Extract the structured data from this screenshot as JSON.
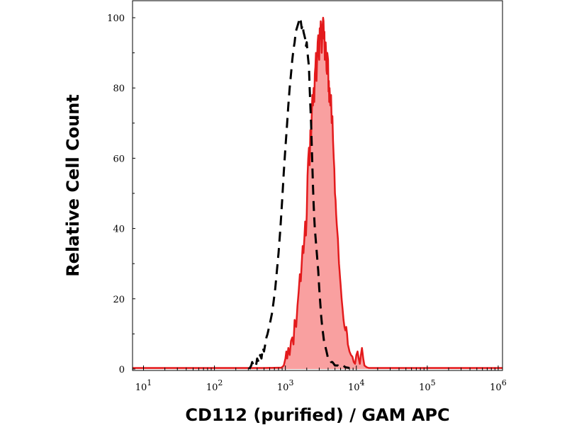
{
  "chart_data": {
    "type": "area",
    "xlabel": "CD112 (purified) / GAM APC",
    "ylabel": "Relative Cell Count",
    "x_scale": "log",
    "xlim": [
      7,
      1150000
    ],
    "ylim": [
      0,
      100
    ],
    "x_ticks": [
      {
        "base": "10",
        "exp": "1",
        "value": 10
      },
      {
        "base": "10",
        "exp": "2",
        "value": 100
      },
      {
        "base": "10",
        "exp": "3",
        "value": 1000
      },
      {
        "base": "10",
        "exp": "4",
        "value": 10000
      },
      {
        "base": "10",
        "exp": "5",
        "value": 100000
      },
      {
        "base": "10",
        "exp": "6",
        "value": 1000000
      }
    ],
    "y_ticks": [
      {
        "label": "0",
        "value": 0
      },
      {
        "label": "20",
        "value": 20
      },
      {
        "label": "40",
        "value": 40
      },
      {
        "label": "60",
        "value": 60
      },
      {
        "label": "80",
        "value": 80
      },
      {
        "label": "100",
        "value": 100
      }
    ],
    "grid": false,
    "series": [
      {
        "style": "filled",
        "color": "#e31a1c",
        "fill": "#f9a0a0",
        "points": [
          [
            7,
            0.3
          ],
          [
            100,
            0.3
          ],
          [
            500,
            0.3
          ],
          [
            880,
            0.4
          ],
          [
            950,
            1
          ],
          [
            1000,
            3
          ],
          [
            1030,
            5
          ],
          [
            1060,
            3
          ],
          [
            1100,
            6
          ],
          [
            1150,
            4
          ],
          [
            1200,
            8
          ],
          [
            1250,
            9
          ],
          [
            1300,
            7
          ],
          [
            1350,
            14
          ],
          [
            1420,
            12
          ],
          [
            1480,
            18
          ],
          [
            1540,
            22
          ],
          [
            1600,
            27
          ],
          [
            1650,
            25
          ],
          [
            1700,
            30
          ],
          [
            1750,
            35
          ],
          [
            1800,
            33
          ],
          [
            1850,
            37
          ],
          [
            1900,
            42
          ],
          [
            1950,
            38
          ],
          [
            2000,
            44
          ],
          [
            2050,
            55
          ],
          [
            2100,
            60
          ],
          [
            2150,
            63
          ],
          [
            2200,
            58
          ],
          [
            2250,
            68
          ],
          [
            2300,
            65
          ],
          [
            2350,
            72
          ],
          [
            2400,
            78
          ],
          [
            2450,
            75
          ],
          [
            2500,
            80
          ],
          [
            2550,
            76
          ],
          [
            2600,
            84
          ],
          [
            2650,
            86
          ],
          [
            2700,
            90
          ],
          [
            2750,
            82
          ],
          [
            2800,
            88
          ],
          [
            2850,
            93
          ],
          [
            2900,
            95
          ],
          [
            2950,
            90
          ],
          [
            3000,
            88
          ],
          [
            3050,
            97
          ],
          [
            3100,
            94
          ],
          [
            3150,
            99
          ],
          [
            3200,
            96
          ],
          [
            3250,
            90
          ],
          [
            3300,
            94
          ],
          [
            3350,
            98
          ],
          [
            3400,
            100
          ],
          [
            3450,
            99
          ],
          [
            3500,
            94
          ],
          [
            3550,
            96
          ],
          [
            3600,
            88
          ],
          [
            3650,
            92
          ],
          [
            3700,
            93
          ],
          [
            3750,
            90
          ],
          [
            3800,
            85
          ],
          [
            3850,
            84
          ],
          [
            3900,
            90
          ],
          [
            3950,
            89
          ],
          [
            4000,
            88
          ],
          [
            4050,
            79
          ],
          [
            4100,
            82
          ],
          [
            4150,
            76
          ],
          [
            4200,
            80
          ],
          [
            4300,
            75
          ],
          [
            4400,
            78
          ],
          [
            4500,
            70
          ],
          [
            4600,
            72
          ],
          [
            4700,
            65
          ],
          [
            4800,
            60
          ],
          [
            4900,
            57
          ],
          [
            5000,
            50
          ],
          [
            5100,
            48
          ],
          [
            5200,
            44
          ],
          [
            5300,
            41
          ],
          [
            5400,
            39
          ],
          [
            5500,
            37
          ],
          [
            5600,
            33
          ],
          [
            5700,
            30
          ],
          [
            5800,
            28
          ],
          [
            5900,
            26
          ],
          [
            6000,
            24
          ],
          [
            6200,
            20
          ],
          [
            6400,
            17
          ],
          [
            6600,
            14
          ],
          [
            6800,
            12
          ],
          [
            7000,
            11
          ],
          [
            7200,
            12
          ],
          [
            7400,
            10
          ],
          [
            7600,
            7
          ],
          [
            7800,
            6
          ],
          [
            8000,
            5
          ],
          [
            8400,
            4
          ],
          [
            8800,
            3.5
          ],
          [
            9200,
            2
          ],
          [
            9600,
            1.5
          ],
          [
            10000,
            4
          ],
          [
            10400,
            5
          ],
          [
            10800,
            3
          ],
          [
            11200,
            1.5
          ],
          [
            11600,
            4
          ],
          [
            12000,
            6
          ],
          [
            12500,
            3
          ],
          [
            13000,
            1
          ],
          [
            14000,
            0.5
          ],
          [
            15000,
            0.3
          ],
          [
            1150000,
            0.3
          ]
        ]
      },
      {
        "style": "dashed",
        "color": "#000000",
        "points": [
          [
            310,
            0
          ],
          [
            330,
            1
          ],
          [
            340,
            2
          ],
          [
            355,
            1
          ],
          [
            370,
            0.5
          ],
          [
            390,
            1.5
          ],
          [
            400,
            3
          ],
          [
            420,
            2
          ],
          [
            440,
            4
          ],
          [
            460,
            3
          ],
          [
            480,
            6
          ],
          [
            500,
            5
          ],
          [
            520,
            7
          ],
          [
            540,
            9
          ],
          [
            560,
            10
          ],
          [
            590,
            12
          ],
          [
            620,
            14
          ],
          [
            650,
            16
          ],
          [
            680,
            19
          ],
          [
            720,
            23
          ],
          [
            760,
            28
          ],
          [
            800,
            33
          ],
          [
            850,
            40
          ],
          [
            900,
            48
          ],
          [
            950,
            56
          ],
          [
            1000,
            63
          ],
          [
            1050,
            69
          ],
          [
            1100,
            75
          ],
          [
            1150,
            80
          ],
          [
            1200,
            84
          ],
          [
            1250,
            88
          ],
          [
            1300,
            91
          ],
          [
            1350,
            93
          ],
          [
            1400,
            96
          ],
          [
            1450,
            97
          ],
          [
            1500,
            98
          ],
          [
            1550,
            99
          ],
          [
            1600,
            100
          ],
          [
            1650,
            99
          ],
          [
            1700,
            97
          ],
          [
            1750,
            98
          ],
          [
            1800,
            96
          ],
          [
            1850,
            95
          ],
          [
            1900,
            94
          ],
          [
            1950,
            92
          ],
          [
            2000,
            93
          ],
          [
            2050,
            90
          ],
          [
            2100,
            88
          ],
          [
            2150,
            86
          ],
          [
            2200,
            80
          ],
          [
            2250,
            75
          ],
          [
            2300,
            70
          ],
          [
            2350,
            64
          ],
          [
            2400,
            58
          ],
          [
            2450,
            52
          ],
          [
            2500,
            47
          ],
          [
            2550,
            43
          ],
          [
            2600,
            40
          ],
          [
            2700,
            36
          ],
          [
            2800,
            32
          ],
          [
            2900,
            28
          ],
          [
            3000,
            23
          ],
          [
            3100,
            19
          ],
          [
            3200,
            15
          ],
          [
            3300,
            12
          ],
          [
            3400,
            10
          ],
          [
            3500,
            8
          ],
          [
            3600,
            7
          ],
          [
            3700,
            6
          ],
          [
            3800,
            5
          ],
          [
            3900,
            4
          ],
          [
            4000,
            3
          ],
          [
            4200,
            3
          ],
          [
            4400,
            2
          ],
          [
            4600,
            2
          ],
          [
            4800,
            1.5
          ],
          [
            5000,
            1
          ],
          [
            5500,
            1
          ],
          [
            6000,
            0.5
          ],
          [
            6500,
            1
          ],
          [
            7000,
            0.5
          ],
          [
            8000,
            0.3
          ]
        ]
      }
    ]
  }
}
